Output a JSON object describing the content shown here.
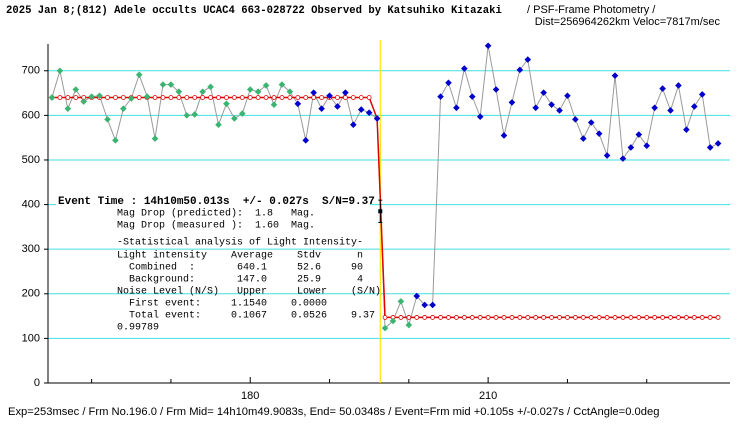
{
  "chart_data": {
    "type": "line",
    "title": "2025 Jan 8;(812) Adele occults UCAC4 663-028722 Observed by Katsuhiko Kitazaki",
    "subtitle": "/ PSF-Frame Photometry /",
    "subtitle2": "Dist=256964262km Veloc=7817m/sec",
    "footer": "Exp=253msec / Frm No.196.0 / Frm Mid= 14h10m49.9083s, End= 50.0348s / Event=Frm mid +0.105s +/-0.027s / CctAngle=0.0deg",
    "annotations": [
      "Event Time : 14h10m50.013s  +/- 0.027s  S/N=9.37",
      "Mag Drop (predicted):  1.8   Mag.",
      "Mag Drop (measured ):  1.60  Mag.",
      "-Statistical analysis of Light Intensity-",
      "Light intensity    Average    Stdv      n",
      "  Combined  :       640.1     52.6     90",
      "  Background:       147.0     25.9      4",
      "Noise Level (N/S)   Upper     Lower    (S/N)",
      "  First event:     1.1540    0.0000",
      "  Total event:     0.1067    0.0526    9.37",
      "0.99789"
    ],
    "x": [
      155,
      156,
      157,
      158,
      159,
      160,
      161,
      162,
      163,
      164,
      165,
      166,
      167,
      168,
      169,
      170,
      171,
      172,
      173,
      174,
      175,
      176,
      177,
      178,
      179,
      180,
      181,
      182,
      183,
      184,
      185,
      186,
      187,
      188,
      189,
      190,
      191,
      192,
      193,
      194,
      195,
      196,
      197,
      198,
      199,
      200,
      201,
      202,
      203,
      204,
      205,
      206,
      207,
      208,
      209,
      210,
      211,
      212,
      213,
      214,
      215,
      216,
      217,
      218,
      219,
      220,
      221,
      222,
      223,
      224,
      225,
      226,
      227,
      228,
      229,
      230,
      231,
      232,
      233,
      234,
      235,
      236,
      237,
      238,
      239
    ],
    "series": [
      {
        "color": "#9a9a9a",
        "values": [
          640,
          700,
          615,
          658,
          631,
          642,
          644,
          591,
          544,
          615,
          638,
          691,
          642,
          548,
          669,
          669,
          653,
          600,
          602,
          653,
          664,
          579,
          626,
          593,
          604,
          658,
          653,
          667,
          624,
          669,
          653,
          626,
          544,
          651,
          615,
          644,
          620,
          651,
          579,
          613,
          606,
          593,
          123,
          139,
          183,
          130,
          195,
          175,
          175,
          642,
          673,
          617,
          705,
          642,
          597,
          756,
          658,
          555,
          629,
          702,
          725,
          617,
          651,
          624,
          611,
          644,
          591,
          548,
          584,
          559,
          510,
          689,
          503,
          528,
          557,
          532,
          617,
          660,
          611,
          667,
          568,
          620,
          647,
          528,
          537
        ],
        "marker_colors": [
          "#3cb371",
          "#3cb371",
          "#3cb371",
          "#3cb371",
          "#3cb371",
          "#3cb371",
          "#3cb371",
          "#3cb371",
          "#3cb371",
          "#3cb371",
          "#3cb371",
          "#3cb371",
          "#3cb371",
          "#3cb371",
          "#3cb371",
          "#3cb371",
          "#3cb371",
          "#3cb371",
          "#3cb371",
          "#3cb371",
          "#3cb371",
          "#3cb371",
          "#3cb371",
          "#3cb371",
          "#3cb371",
          "#3cb371",
          "#3cb371",
          "#3cb371",
          "#3cb371",
          "#3cb371",
          "#3cb371",
          "#0000cd",
          "#0000cd",
          "#0000cd",
          "#0000cd",
          "#0000cd",
          "#0000cd",
          "#0000cd",
          "#0000cd",
          "#0000cd",
          "#0000cd",
          "#0000cd",
          "#3cb371",
          "#3cb371",
          "#3cb371",
          "#3cb371",
          "#0000cd",
          "#0000cd",
          "#0000cd",
          "#0000cd",
          "#0000cd",
          "#0000cd",
          "#0000cd",
          "#0000cd",
          "#0000cd",
          "#0000cd",
          "#0000cd",
          "#0000cd",
          "#0000cd",
          "#0000cd",
          "#0000cd",
          "#0000cd",
          "#0000cd",
          "#0000cd",
          "#0000cd",
          "#0000cd",
          "#0000cd",
          "#0000cd",
          "#0000cd",
          "#0000cd",
          "#0000cd",
          "#0000cd",
          "#0000cd",
          "#0000cd",
          "#0000cd",
          "#0000cd",
          "#0000cd",
          "#0000cd",
          "#0000cd",
          "#0000cd",
          "#0000cd",
          "#0000cd",
          "#0000cd",
          "#0000cd",
          "#0000cd"
        ]
      },
      {
        "color": "#e00000",
        "values": [
          640,
          640,
          640,
          640,
          640,
          640,
          640,
          640,
          640,
          640,
          640,
          640,
          640,
          640,
          640,
          640,
          640,
          640,
          640,
          640,
          640,
          640,
          640,
          640,
          640,
          640,
          640,
          640,
          640,
          640,
          640,
          640,
          640,
          640,
          640,
          640,
          640,
          640,
          640,
          640,
          640,
          593,
          147,
          147,
          147,
          147,
          147,
          147,
          147,
          147,
          147,
          147,
          147,
          147,
          147,
          147,
          147,
          147,
          147,
          147,
          147,
          147,
          147,
          147,
          147,
          147,
          147,
          147,
          147,
          147,
          147,
          147,
          147,
          147,
          147,
          147,
          147,
          147,
          147,
          147,
          147,
          147,
          147,
          147,
          147
        ]
      }
    ],
    "event": {
      "x": 196.4,
      "value": 385,
      "error": 25,
      "color": "#ffe600"
    },
    "xlim": [
      154.5,
      240.5
    ],
    "xticks": [
      180,
      210
    ],
    "xminor": [
      160,
      170,
      190,
      200,
      220,
      230
    ],
    "ylim": [
      0,
      760
    ],
    "yticks": [
      0,
      100,
      200,
      300,
      400,
      500,
      600,
      700
    ],
    "grid": true,
    "grid_color": "#40e0e0"
  }
}
